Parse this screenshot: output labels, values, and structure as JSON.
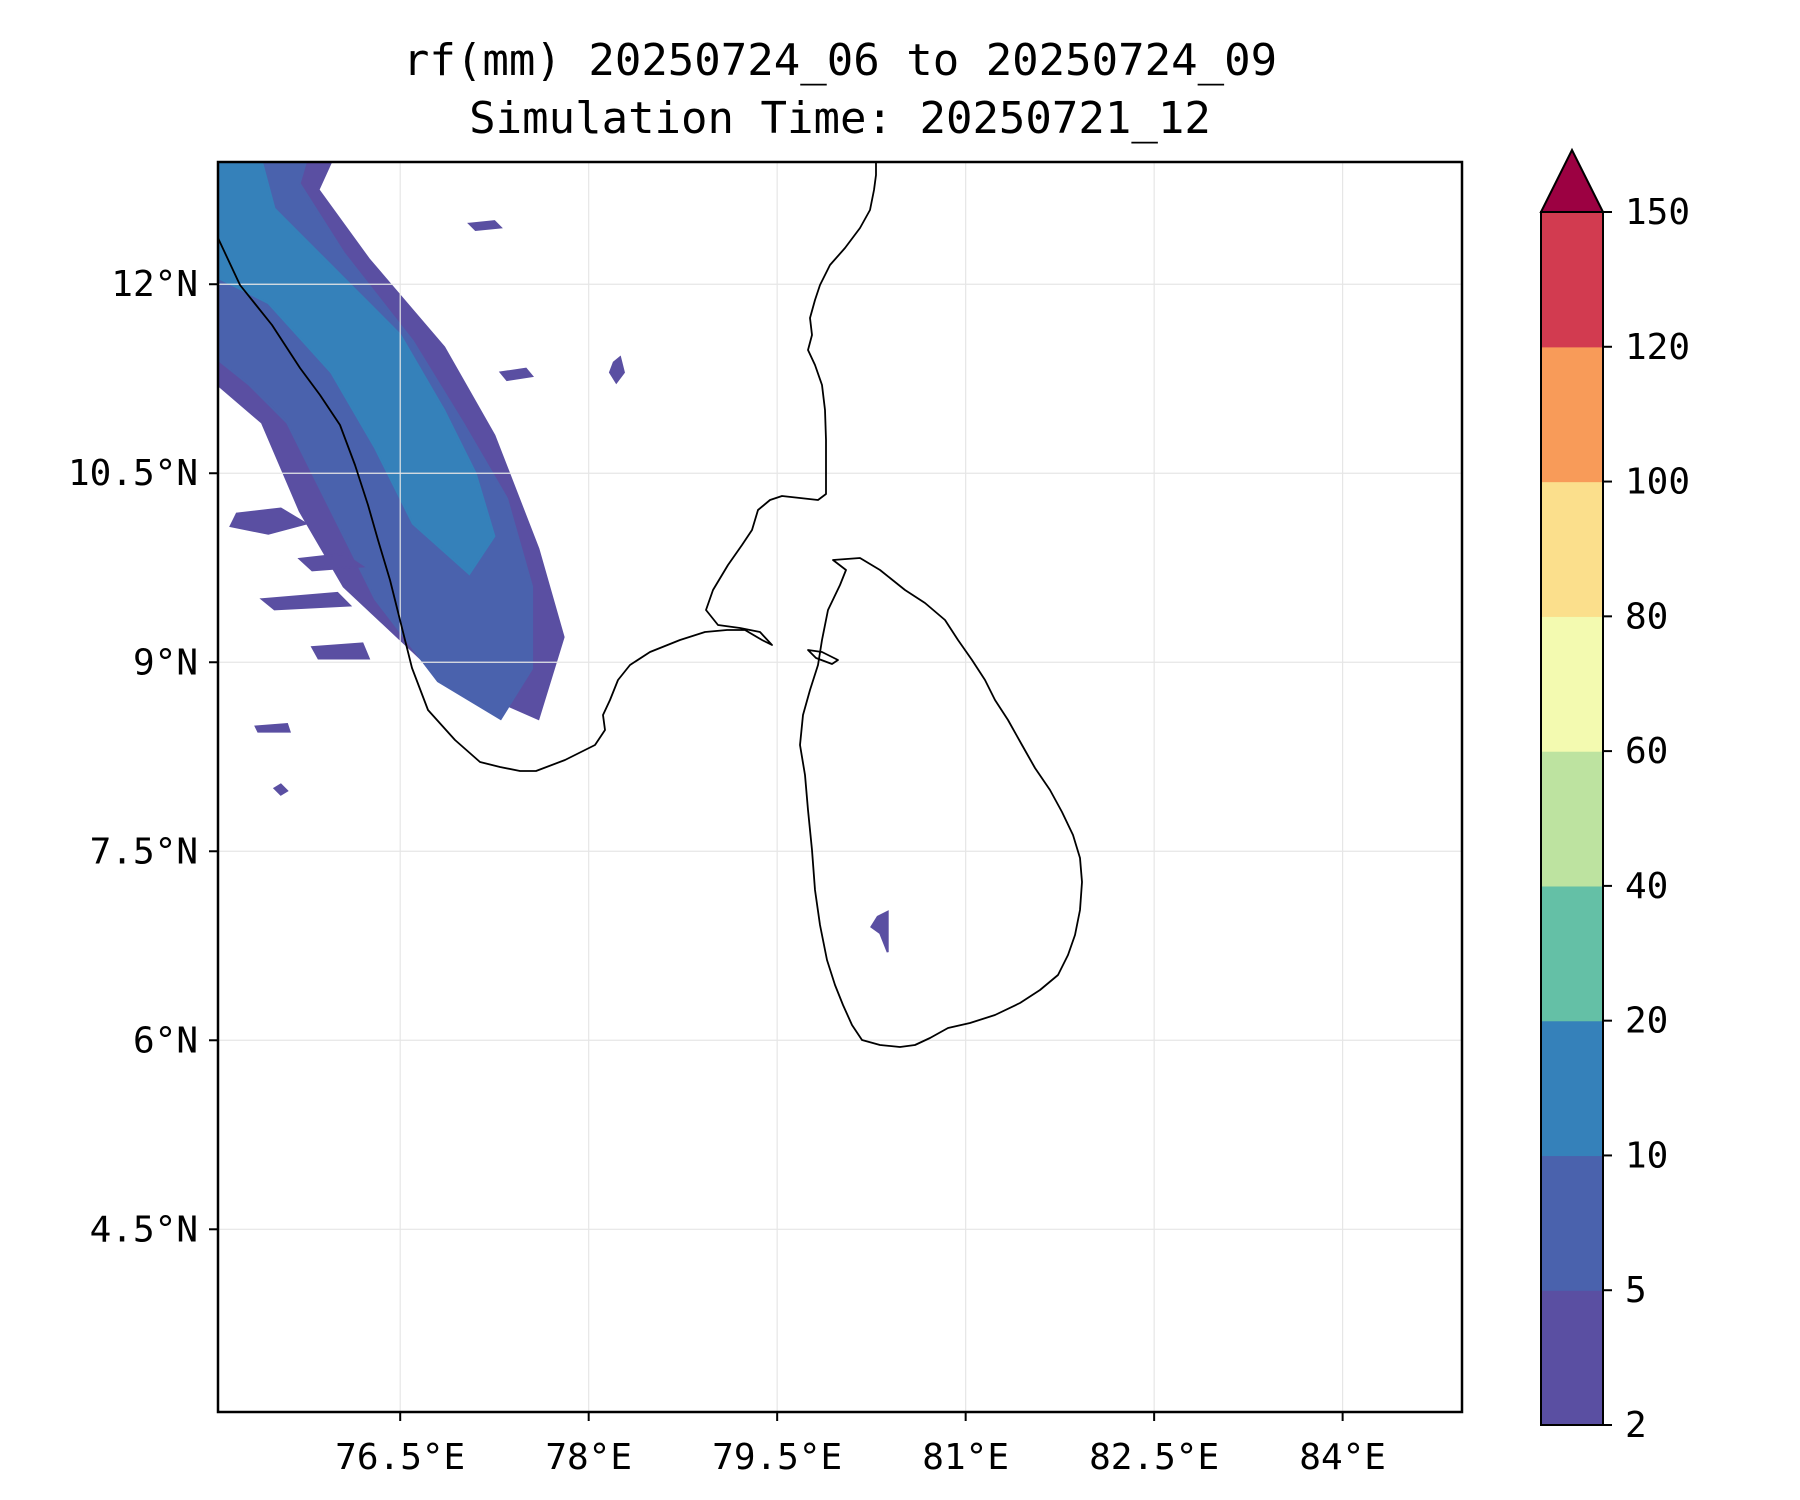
{
  "title_line1": "rf(mm) 20250724_06 to 20250724_09",
  "title_line2": "Simulation Time: 20250721_12",
  "chart_data": {
    "type": "heatmap",
    "variable": "rf(mm)",
    "x_ticks": [
      {
        "value": 76.5,
        "label": "76.5°E"
      },
      {
        "value": 78.0,
        "label": "78°E"
      },
      {
        "value": 79.5,
        "label": "79.5°E"
      },
      {
        "value": 81.0,
        "label": "81°E"
      },
      {
        "value": 82.5,
        "label": "82.5°E"
      },
      {
        "value": 84.0,
        "label": "84°E"
      }
    ],
    "y_ticks": [
      {
        "value": 12.0,
        "label": "12°N"
      },
      {
        "value": 10.5,
        "label": "10.5°N"
      },
      {
        "value": 9.0,
        "label": "9°N"
      },
      {
        "value": 7.5,
        "label": "7.5°N"
      },
      {
        "value": 6.0,
        "label": "6°N"
      },
      {
        "value": 4.5,
        "label": "4.5°N"
      }
    ],
    "xlim": [
      75.05,
      84.95
    ],
    "ylim": [
      3.05,
      12.97
    ],
    "grid": true,
    "colorbar": {
      "levels": [
        2,
        5,
        10,
        20,
        40,
        60,
        80,
        100,
        120,
        150
      ],
      "labels": [
        "2",
        "5",
        "10",
        "20",
        "40",
        "60",
        "80",
        "100",
        "120",
        "150"
      ],
      "colors": [
        "#5a4fa2",
        "#4a62ad",
        "#3581ba",
        "#64c0a6",
        "#bde3a0",
        "#f3fab0",
        "#fbdf8c",
        "#f89b59",
        "#d23b50"
      ],
      "extend_color": "#9c0142",
      "extend": "max"
    },
    "rain_regions": [
      {
        "band": "2-5 mm",
        "color": "#5a4fa2",
        "polygon": [
          [
            75.05,
            12.97
          ],
          [
            75.95,
            12.97
          ],
          [
            75.85,
            12.75
          ],
          [
            76.25,
            12.2
          ],
          [
            76.85,
            11.5
          ],
          [
            77.25,
            10.8
          ],
          [
            77.6,
            9.9
          ],
          [
            77.8,
            9.2
          ],
          [
            77.6,
            8.55
          ],
          [
            76.8,
            8.9
          ],
          [
            76.05,
            9.6
          ],
          [
            75.7,
            10.2
          ],
          [
            75.4,
            10.9
          ],
          [
            75.05,
            11.2
          ]
        ]
      },
      {
        "band": "5-10 mm",
        "color": "#4a62ad",
        "polygon": [
          [
            75.05,
            12.97
          ],
          [
            75.75,
            12.97
          ],
          [
            75.7,
            12.8
          ],
          [
            76.05,
            12.25
          ],
          [
            76.6,
            11.55
          ],
          [
            77.0,
            10.9
          ],
          [
            77.35,
            10.3
          ],
          [
            77.55,
            9.6
          ],
          [
            77.55,
            8.95
          ],
          [
            77.3,
            8.55
          ],
          [
            76.8,
            8.85
          ],
          [
            76.3,
            9.5
          ],
          [
            75.9,
            10.3
          ],
          [
            75.6,
            10.9
          ],
          [
            75.3,
            11.2
          ],
          [
            75.05,
            11.4
          ]
        ]
      },
      {
        "band": "10-20 mm",
        "color": "#3581ba",
        "polygon": [
          [
            75.05,
            12.97
          ],
          [
            75.4,
            12.97
          ],
          [
            75.5,
            12.6
          ],
          [
            75.9,
            12.2
          ],
          [
            76.5,
            11.6
          ],
          [
            76.85,
            11.0
          ],
          [
            77.1,
            10.5
          ],
          [
            77.25,
            10.0
          ],
          [
            77.05,
            9.7
          ],
          [
            76.6,
            10.1
          ],
          [
            76.3,
            10.7
          ],
          [
            75.95,
            11.3
          ],
          [
            75.45,
            11.85
          ],
          [
            75.05,
            12.05
          ]
        ]
      },
      {
        "band": "2-5 mm",
        "color": "#5a4fa2",
        "polygon": [
          [
            75.2,
            10.18
          ],
          [
            75.55,
            10.22
          ],
          [
            75.75,
            10.1
          ],
          [
            75.45,
            10.02
          ],
          [
            75.15,
            10.08
          ]
        ]
      },
      {
        "band": "2-5 mm",
        "color": "#5a4fa2",
        "polygon": [
          [
            75.7,
            9.82
          ],
          [
            76.05,
            9.86
          ],
          [
            76.2,
            9.76
          ],
          [
            75.8,
            9.73
          ]
        ]
      },
      {
        "band": "2-5 mm",
        "color": "#5a4fa2",
        "polygon": [
          [
            75.4,
            9.5
          ],
          [
            76.0,
            9.55
          ],
          [
            76.1,
            9.45
          ],
          [
            75.5,
            9.42
          ]
        ]
      },
      {
        "band": "2-5 mm",
        "color": "#5a4fa2",
        "polygon": [
          [
            75.8,
            9.12
          ],
          [
            76.2,
            9.15
          ],
          [
            76.25,
            9.03
          ],
          [
            75.85,
            9.03
          ]
        ]
      },
      {
        "band": "2-5 mm",
        "color": "#5a4fa2",
        "polygon": [
          [
            75.35,
            8.49
          ],
          [
            75.6,
            8.51
          ],
          [
            75.62,
            8.45
          ],
          [
            75.37,
            8.45
          ]
        ]
      },
      {
        "band": "2-5 mm",
        "color": "#5a4fa2",
        "polygon": [
          [
            75.5,
            8.0
          ],
          [
            75.55,
            8.03
          ],
          [
            75.6,
            7.98
          ],
          [
            75.55,
            7.95
          ]
        ]
      },
      {
        "band": "2-5 mm",
        "color": "#5a4fa2",
        "polygon": [
          [
            77.05,
            12.48
          ],
          [
            77.25,
            12.5
          ],
          [
            77.3,
            12.45
          ],
          [
            77.1,
            12.43
          ]
        ]
      },
      {
        "band": "2-5 mm",
        "color": "#5a4fa2",
        "polygon": [
          [
            77.3,
            11.3
          ],
          [
            77.5,
            11.33
          ],
          [
            77.55,
            11.27
          ],
          [
            77.35,
            11.24
          ]
        ]
      },
      {
        "band": "2-5 mm",
        "color": "#5a4fa2",
        "polygon": [
          [
            78.2,
            11.38
          ],
          [
            78.25,
            11.42
          ],
          [
            78.28,
            11.3
          ],
          [
            78.22,
            11.22
          ],
          [
            78.17,
            11.3
          ]
        ]
      },
      {
        "band": "2-5 mm",
        "color": "#5a4fa2",
        "polygon": [
          [
            80.3,
            6.98
          ],
          [
            80.38,
            7.02
          ],
          [
            80.38,
            6.7
          ],
          [
            80.32,
            6.85
          ],
          [
            80.25,
            6.9
          ]
        ]
      }
    ]
  }
}
